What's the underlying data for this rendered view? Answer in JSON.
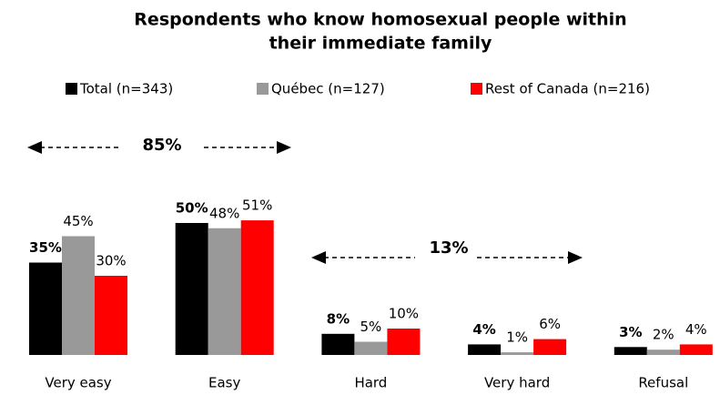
{
  "chart_data": {
    "type": "bar",
    "title": [
      "Respondents who know homosexual people within",
      "their immediate family"
    ],
    "categories": [
      "Very easy",
      "Easy",
      "Hard",
      "Very hard",
      "Refusal"
    ],
    "series": [
      {
        "name": "Total (n=343)",
        "color": "#000000",
        "values": [
          35,
          50,
          8,
          4,
          3
        ],
        "value_labels": [
          "35%",
          "50%",
          "8%",
          "4%",
          "3%"
        ]
      },
      {
        "name": "Québec (n=127)",
        "color": "#999999",
        "values": [
          45,
          48,
          5,
          1,
          2
        ],
        "value_labels": [
          "45%",
          "48%",
          "5%",
          "1%",
          "2%"
        ]
      },
      {
        "name": "Rest of Canada (n=216)",
        "color": "#ff0000",
        "values": [
          30,
          51,
          10,
          6,
          4
        ],
        "value_labels": [
          "30%",
          "51%",
          "10%",
          "6%",
          "4%"
        ]
      }
    ],
    "annotations": [
      "85%",
      "13%"
    ]
  }
}
